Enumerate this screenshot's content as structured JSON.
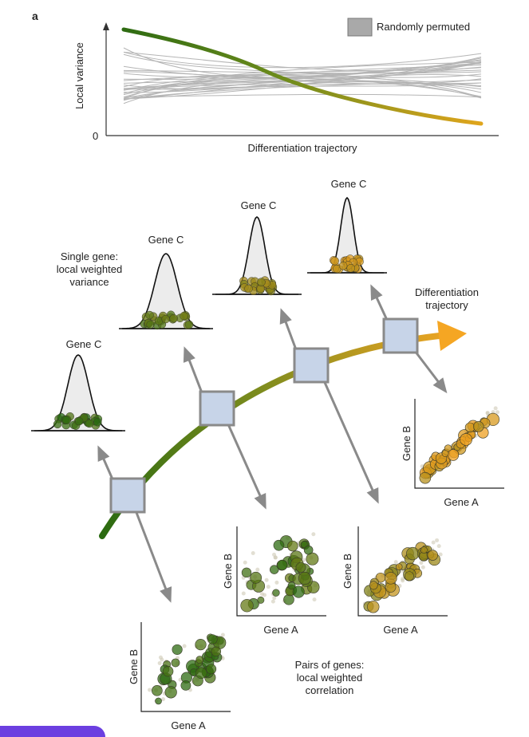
{
  "panel_label": "a",
  "top_plot": {
    "ylabel": "Local variance",
    "y_zero": "0",
    "xlabel": "Differentiation trajectory",
    "legend": "Randomly permuted"
  },
  "labels": {
    "gene_c": "Gene C",
    "gene_a": "Gene A",
    "gene_b": "Gene B",
    "single_gene": "Single gene:\nlocal weighted\nvariance",
    "trajectory": "Differentiation\ntrajectory",
    "pairs": "Pairs of genes:\nlocal weighted\ncorrelation"
  },
  "colors": {
    "early": "#2e6b12",
    "late": "#f0a020",
    "grey": "#b5b5b5",
    "box_fill": "#c7d4e8",
    "box_stroke": "#8a8a8a",
    "arrow": "#8a8a8a",
    "accent_tab": "#6b3fe0"
  }
}
